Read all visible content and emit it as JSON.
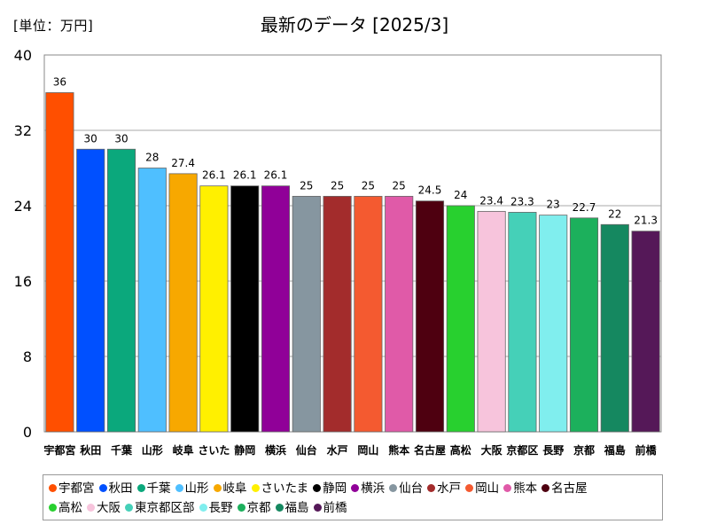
{
  "header": {
    "unit": "[単位：万円]",
    "title": "最新のデータ [2025/3]"
  },
  "chart_data": {
    "type": "bar",
    "title": "最新のデータ [2025/3]",
    "ylabel": "[単位：万円]",
    "ylim": [
      0,
      40
    ],
    "yticks": [
      0,
      8,
      16,
      24,
      32,
      40
    ],
    "grid": true,
    "legend_position": "bottom",
    "categories": [
      "宇都宮",
      "秋田",
      "千葉",
      "山形",
      "岐阜",
      "さいたま",
      "静岡",
      "横浜",
      "仙台",
      "水戸",
      "岡山",
      "熊本",
      "名古屋",
      "高松",
      "大阪",
      "東京都区部",
      "長野",
      "京都",
      "福島",
      "前橋"
    ],
    "values": [
      36,
      30,
      30,
      28,
      27.4,
      26.1,
      26.1,
      26.1,
      25,
      25,
      25,
      25,
      24.5,
      24,
      23.4,
      23.3,
      23,
      22.7,
      22,
      21.3
    ],
    "value_labels": [
      "36",
      "30",
      "30",
      "28",
      "27.4",
      "26.1",
      "26.1",
      "26.1",
      "25",
      "25",
      "25",
      "25",
      "24.5",
      "24",
      "23.4",
      "23.3",
      "23",
      "22.7",
      "22",
      "21.3"
    ],
    "colors": [
      "#ff4f00",
      "#0050ff",
      "#0ba87c",
      "#4fbfff",
      "#f7a800",
      "#fff000",
      "#000000",
      "#900098",
      "#8696a0",
      "#a32c2c",
      "#f45a30",
      "#e05aa8",
      "#4e0010",
      "#28d02f",
      "#f7c4dc",
      "#45d0b8",
      "#80eeee",
      "#1cb05c",
      "#158860",
      "#551858"
    ],
    "xtick_labels": [
      "宇都宮",
      "秋田",
      "千葉",
      "山形",
      "岐阜",
      "さいた",
      "静岡",
      "横浜",
      "仙台",
      "水戸",
      "岡山",
      "熊本",
      "名古屋",
      "高松",
      "大阪",
      "京都区",
      "長野",
      "京都",
      "福島",
      "前橋"
    ]
  },
  "legend": {
    "row1": [
      "宇都宮",
      "秋田",
      "千葉",
      "山形",
      "岐阜",
      "さいたま",
      "静岡",
      "横浜",
      "仙台",
      "水戸",
      "岡山",
      "熊本",
      "名古屋"
    ],
    "row2": [
      "高松",
      "大阪",
      "東京都区部",
      "長野",
      "京都",
      "福島",
      "前橋"
    ]
  }
}
